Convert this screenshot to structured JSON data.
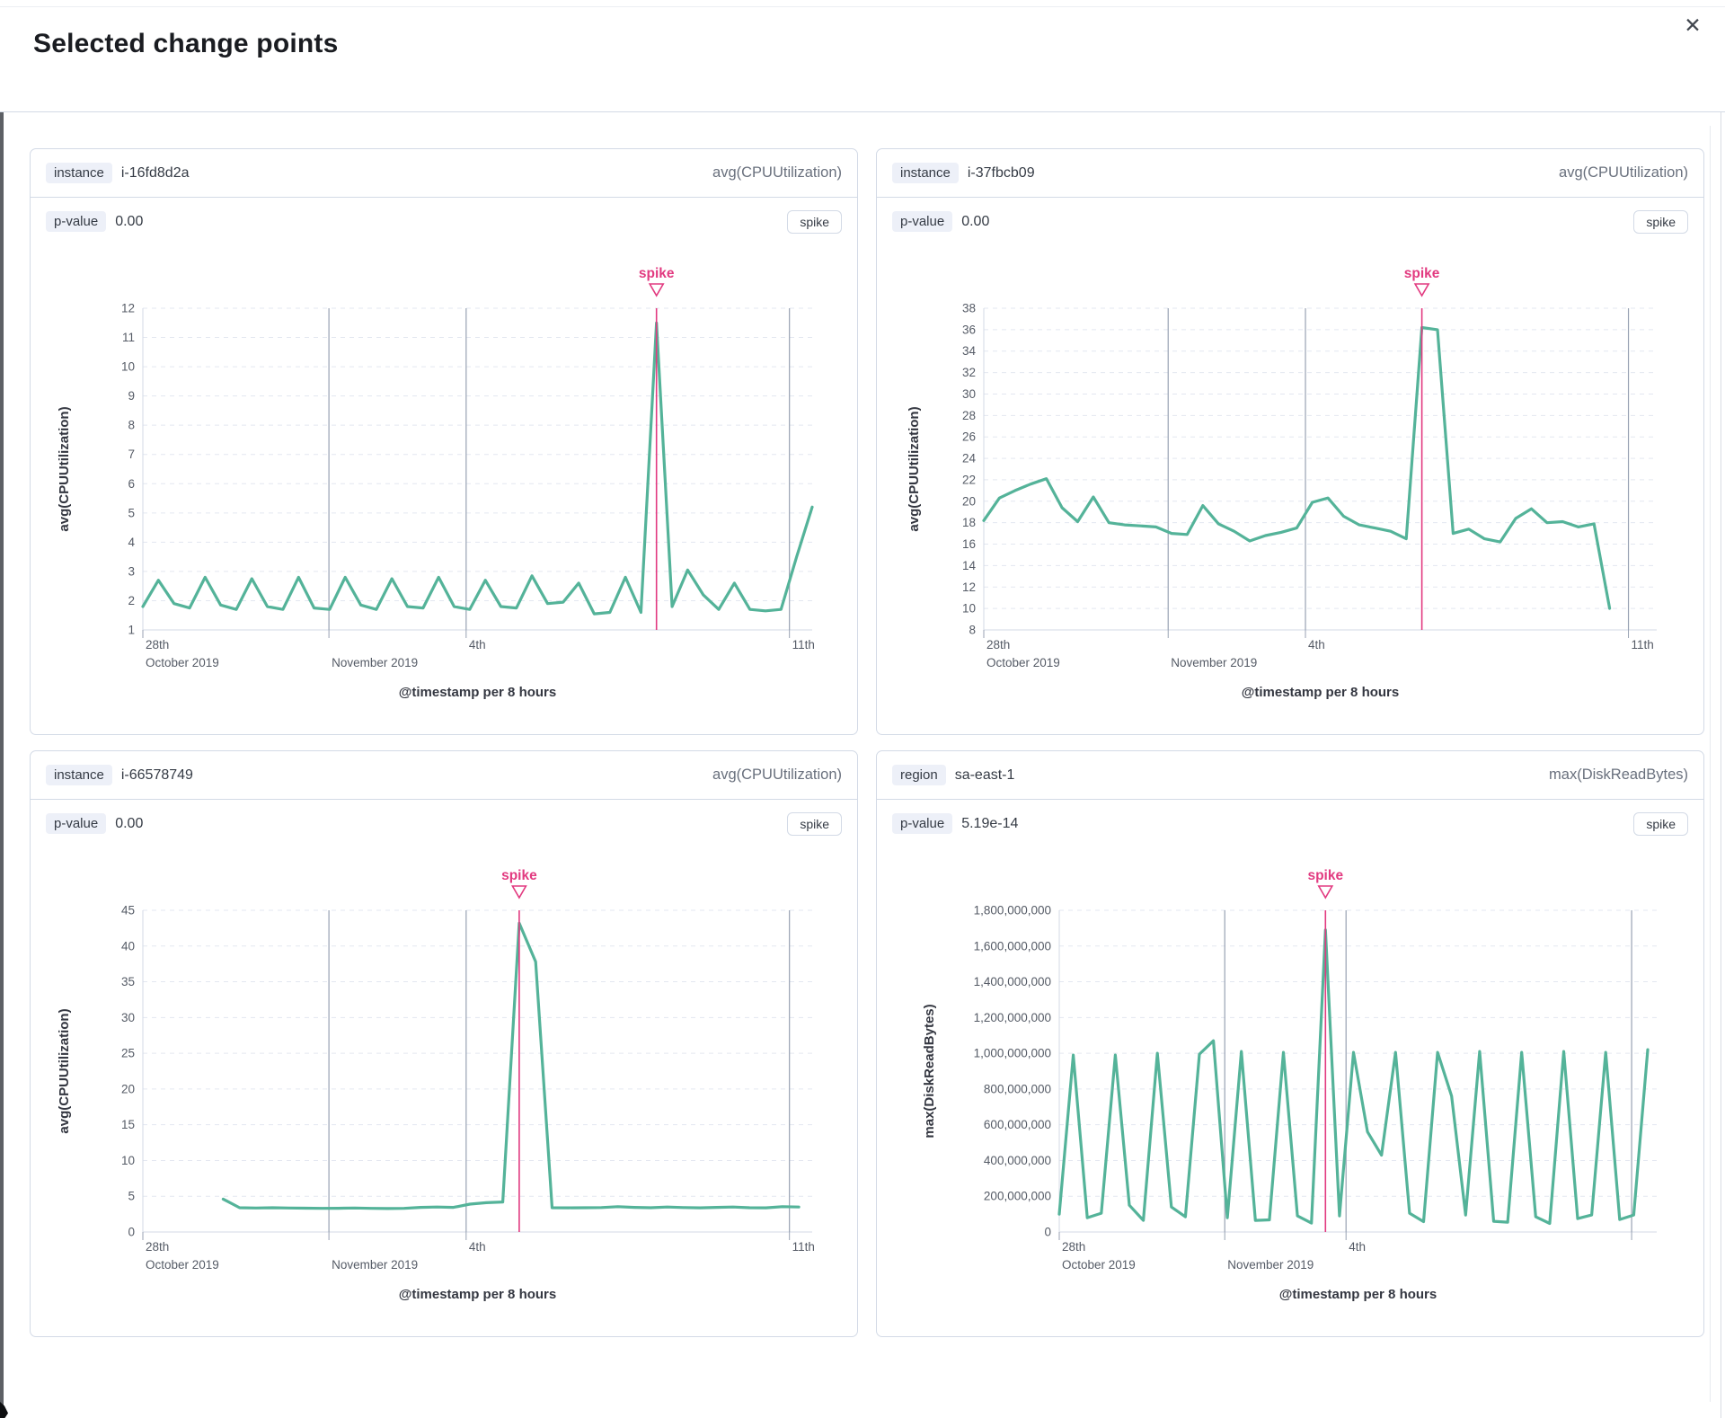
{
  "modal": {
    "title": "Selected change points",
    "close_icon": "✕"
  },
  "colors": {
    "line": "#54b399",
    "annotation": "#e23a80",
    "boundary": "#98a2b3",
    "grid": "#e3e7f0",
    "axis": "#d3dae6",
    "badge_bg": "#edf0f8",
    "panel_border": "#d3dae6",
    "metric_text": "#69707d"
  },
  "panels": [
    {
      "group_badge": "instance",
      "group_value": "i-16fd8d2a",
      "metric": "avg(CPUUtilization)",
      "pvalue_badge": "p-value",
      "pvalue": "0.00",
      "change_type": "spike",
      "chart_data": {
        "type": "line",
        "xlabel": "@timestamp per 8 hours",
        "ylabel": "avg(CPUUtilization)",
        "ylim": [
          1,
          12
        ],
        "ytick_labels": [
          "1",
          "2",
          "3",
          "4",
          "5",
          "6",
          "7",
          "8",
          "9",
          "10",
          "11",
          "12"
        ],
        "xticks": [
          {
            "frac": 0.0,
            "row1": "28th",
            "row2": "October 2019"
          },
          {
            "frac": 0.278,
            "row1": "",
            "row2": "November 2019"
          },
          {
            "frac": 0.483,
            "row1": "4th",
            "row2": ""
          },
          {
            "frac": 0.966,
            "row1": "11th",
            "row2": ""
          }
        ],
        "boundaries": [
          0.278,
          0.483,
          0.966
        ],
        "start_frac": 0,
        "end_frac": 1,
        "values": [
          1.8,
          2.7,
          1.9,
          1.75,
          2.8,
          1.85,
          1.7,
          2.75,
          1.8,
          1.7,
          2.8,
          1.75,
          1.7,
          2.8,
          1.85,
          1.7,
          2.75,
          1.8,
          1.75,
          2.8,
          1.8,
          1.7,
          2.7,
          1.8,
          1.75,
          2.85,
          1.9,
          1.95,
          2.6,
          1.55,
          1.6,
          2.8,
          1.6,
          11.5,
          1.8,
          3.05,
          2.2,
          1.7,
          2.6,
          1.7,
          1.65,
          1.7,
          3.5,
          5.2
        ],
        "annotation": {
          "label": "spike",
          "index": 33
        }
      }
    },
    {
      "group_badge": "instance",
      "group_value": "i-37fbcb09",
      "metric": "avg(CPUUtilization)",
      "pvalue_badge": "p-value",
      "pvalue": "0.00",
      "change_type": "spike",
      "chart_data": {
        "type": "line",
        "xlabel": "@timestamp per 8 hours",
        "ylabel": "avg(CPUUtilization)",
        "ylim": [
          8,
          38
        ],
        "ytick_labels": [
          "8",
          "10",
          "12",
          "14",
          "16",
          "18",
          "20",
          "22",
          "24",
          "26",
          "28",
          "30",
          "32",
          "34",
          "36",
          "38"
        ],
        "xticks": [
          {
            "frac": 0.0,
            "row1": "28th",
            "row2": "October 2019"
          },
          {
            "frac": 0.274,
            "row1": "",
            "row2": "November 2019"
          },
          {
            "frac": 0.478,
            "row1": "4th",
            "row2": ""
          },
          {
            "frac": 0.958,
            "row1": "11th",
            "row2": ""
          }
        ],
        "boundaries": [
          0.274,
          0.478,
          0.958
        ],
        "start_frac": 0,
        "end_frac": 0.93,
        "values": [
          18.2,
          20.3,
          21.0,
          21.6,
          22.1,
          19.4,
          18.1,
          20.4,
          18.0,
          17.8,
          17.7,
          17.6,
          17.0,
          16.9,
          19.6,
          17.9,
          17.2,
          16.3,
          16.8,
          17.1,
          17.5,
          19.9,
          20.3,
          18.6,
          17.8,
          17.5,
          17.2,
          16.5,
          36.2,
          36.0,
          17.0,
          17.4,
          16.5,
          16.2,
          18.4,
          19.3,
          18.0,
          18.1,
          17.6,
          17.9,
          10.0
        ],
        "annotation": {
          "label": "spike",
          "index": 28
        }
      }
    },
    {
      "group_badge": "instance",
      "group_value": "i-66578749",
      "metric": "avg(CPUUtilization)",
      "pvalue_badge": "p-value",
      "pvalue": "0.00",
      "change_type": "spike",
      "chart_data": {
        "type": "line",
        "xlabel": "@timestamp per 8 hours",
        "ylabel": "avg(CPUUtilization)",
        "ylim": [
          0,
          45
        ],
        "ytick_labels": [
          "0",
          "5",
          "10",
          "15",
          "20",
          "25",
          "30",
          "35",
          "40",
          "45"
        ],
        "xticks": [
          {
            "frac": 0.0,
            "row1": "28th",
            "row2": "October 2019"
          },
          {
            "frac": 0.278,
            "row1": "",
            "row2": "November 2019"
          },
          {
            "frac": 0.483,
            "row1": "4th",
            "row2": ""
          },
          {
            "frac": 0.966,
            "row1": "11th",
            "row2": ""
          }
        ],
        "boundaries": [
          0.278,
          0.483,
          0.966
        ],
        "start_frac": 0.12,
        "end_frac": 0.98,
        "values": [
          4.6,
          3.4,
          3.35,
          3.4,
          3.36,
          3.33,
          3.3,
          3.32,
          3.35,
          3.3,
          3.28,
          3.3,
          3.45,
          3.5,
          3.45,
          3.9,
          4.1,
          4.2,
          43.2,
          37.8,
          3.4,
          3.38,
          3.4,
          3.42,
          3.55,
          3.45,
          3.4,
          3.5,
          3.42,
          3.38,
          3.45,
          3.5,
          3.4,
          3.38,
          3.55,
          3.5
        ],
        "annotation": {
          "label": "spike",
          "index": 18
        }
      }
    },
    {
      "group_badge": "region",
      "group_value": "sa-east-1",
      "metric": "max(DiskReadBytes)",
      "pvalue_badge": "p-value",
      "pvalue": "5.19e-14",
      "change_type": "spike",
      "chart_data": {
        "type": "line",
        "xlabel": "@timestamp per 8 hours",
        "ylabel": "max(DiskReadBytes)",
        "ylim": [
          0,
          1800000000
        ],
        "ytick_labels": [
          "0",
          "200,000,000",
          "400,000,000",
          "600,000,000",
          "800,000,000",
          "1,000,000,000",
          "1,200,000,000",
          "1,400,000,000",
          "1,600,000,000",
          "1,800,000,000"
        ],
        "xticks": [
          {
            "frac": 0.0,
            "row1": "28th",
            "row2": "October 2019"
          },
          {
            "frac": 0.277,
            "row1": "",
            "row2": "November 2019"
          },
          {
            "frac": 0.48,
            "row1": "4th",
            "row2": ""
          },
          {
            "frac": 0.958,
            "row1": "",
            "row2": ""
          }
        ],
        "boundaries": [
          0.277,
          0.48,
          0.958
        ],
        "start_frac": 0,
        "end_frac": 0.985,
        "values": [
          100000000,
          990000000,
          80000000,
          105000000,
          990000000,
          150000000,
          65000000,
          1000000000,
          140000000,
          85000000,
          995000000,
          1070000000,
          80000000,
          1010000000,
          65000000,
          68000000,
          1005000000,
          90000000,
          50000000,
          1690000000,
          90000000,
          1005000000,
          560000000,
          430000000,
          1005000000,
          105000000,
          58000000,
          1005000000,
          760000000,
          95000000,
          1010000000,
          60000000,
          55000000,
          1005000000,
          85000000,
          48000000,
          1010000000,
          75000000,
          95000000,
          1005000000,
          70000000,
          95000000,
          1020000000
        ],
        "annotation": {
          "label": "spike",
          "index": 19
        }
      }
    }
  ]
}
